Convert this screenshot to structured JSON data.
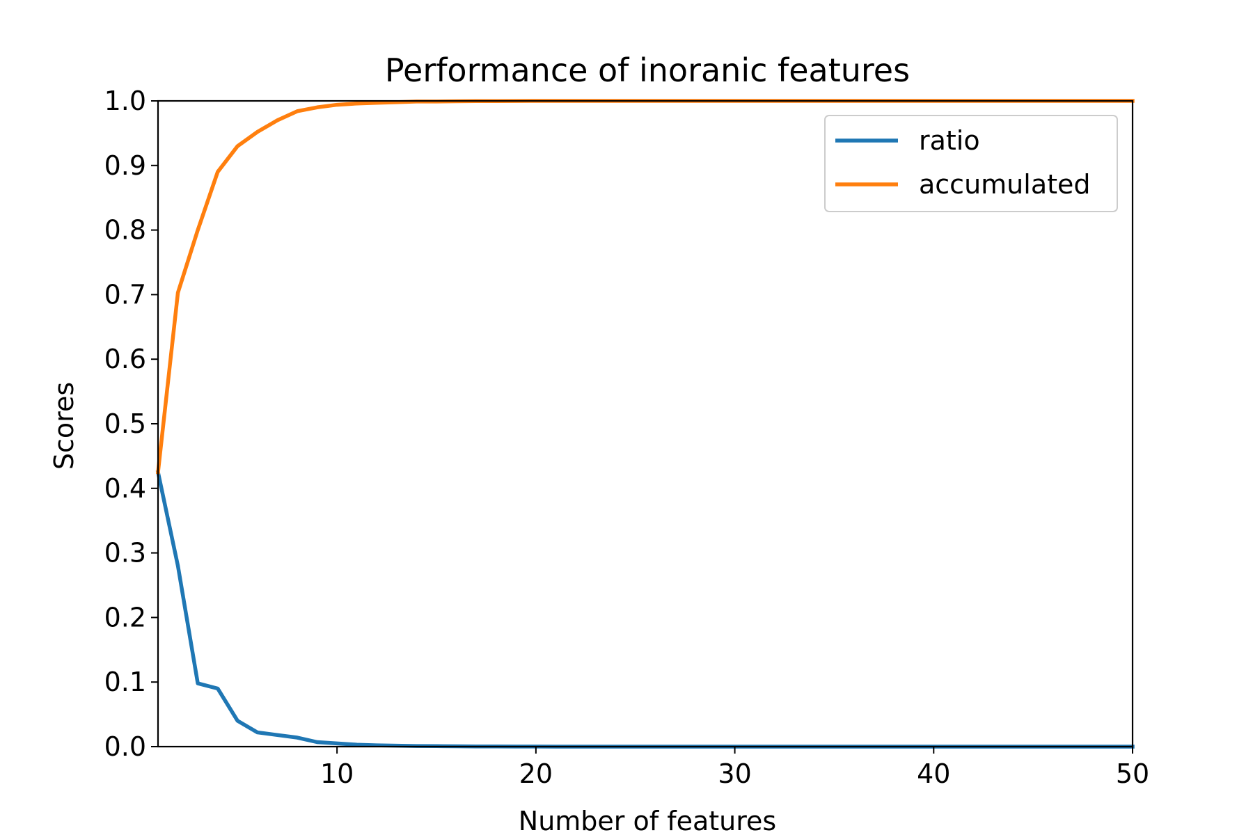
{
  "chart_data": {
    "type": "line",
    "title": "Performance of inoranic features",
    "xlabel": "Number of features",
    "ylabel": "Scores",
    "xlim": [
      1,
      50
    ],
    "ylim": [
      0.0,
      1.0
    ],
    "xticks": [
      10,
      20,
      30,
      40,
      50
    ],
    "xtick_labels": [
      "10",
      "20",
      "30",
      "40",
      "50"
    ],
    "yticks": [
      0.0,
      0.1,
      0.2,
      0.3,
      0.4,
      0.5,
      0.6,
      0.7,
      0.8,
      0.9,
      1.0
    ],
    "ytick_labels": [
      "0.0",
      "0.1",
      "0.2",
      "0.3",
      "0.4",
      "0.5",
      "0.6",
      "0.7",
      "0.8",
      "0.9",
      "1.0"
    ],
    "grid": false,
    "legend_position": "top-right",
    "x": [
      1,
      2,
      3,
      4,
      5,
      6,
      7,
      8,
      9,
      10,
      11,
      12,
      13,
      14,
      15,
      16,
      17,
      18,
      19,
      20,
      21,
      22,
      23,
      24,
      25,
      26,
      27,
      28,
      29,
      30,
      31,
      32,
      33,
      34,
      35,
      36,
      37,
      38,
      39,
      40,
      41,
      42,
      43,
      44,
      45,
      46,
      47,
      48,
      49,
      50
    ],
    "series": [
      {
        "name": "ratio",
        "color": "#1f77b4",
        "values": [
          0.425,
          0.28,
          0.098,
          0.09,
          0.04,
          0.022,
          0.018,
          0.014,
          0.007,
          0.005,
          0.003,
          0.002,
          0.0015,
          0.001,
          0.0008,
          0.0005,
          0.0003,
          0.0002,
          0.0001,
          0.0001,
          0,
          0,
          0,
          0,
          0,
          0,
          0,
          0,
          0,
          0,
          0,
          0,
          0,
          0,
          0,
          0,
          0,
          0,
          0,
          0,
          0,
          0,
          0,
          0,
          0,
          0,
          0,
          0,
          0,
          0
        ]
      },
      {
        "name": "accumulated",
        "color": "#ff7f0e",
        "values": [
          0.425,
          0.703,
          0.8,
          0.89,
          0.93,
          0.952,
          0.97,
          0.984,
          0.99,
          0.994,
          0.996,
          0.997,
          0.998,
          0.999,
          0.999,
          0.9995,
          0.9997,
          0.9998,
          0.9999,
          1,
          1,
          1,
          1,
          1,
          1,
          1,
          1,
          1,
          1,
          1,
          1,
          1,
          1,
          1,
          1,
          1,
          1,
          1,
          1,
          1,
          1,
          1,
          1,
          1,
          1,
          1,
          1,
          1,
          1,
          1
        ]
      }
    ]
  }
}
